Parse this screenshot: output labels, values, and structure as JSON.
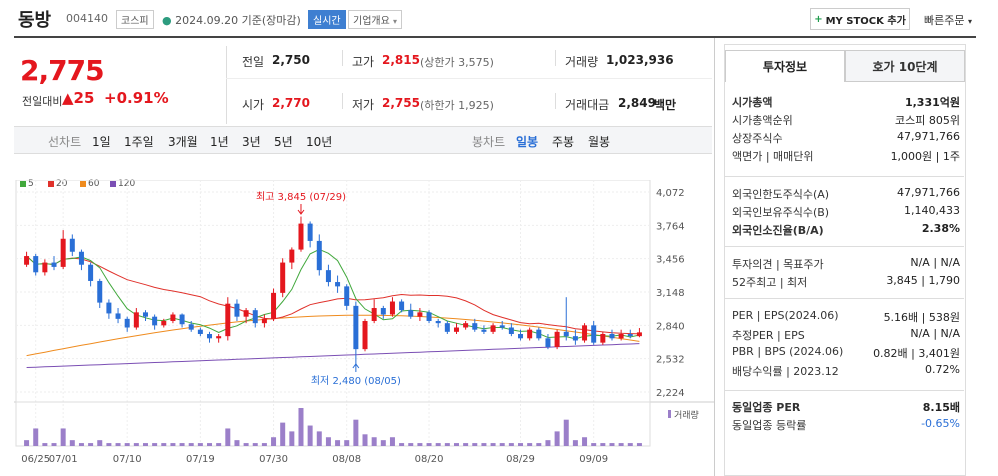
{
  "header": {
    "name": "동방",
    "code": "004140",
    "market_badge": "코스피",
    "date": "2024.09.20",
    "date_suffix": "기준(장마감)",
    "realtime_badge": "실시간",
    "company_info": "기업개요",
    "mystock_label": "MY STOCK 추가",
    "quick_order": "빠른주문"
  },
  "price": {
    "current": "2,775",
    "prev_label": "전일대비",
    "change": "▲25",
    "change_pct": "+0.91%"
  },
  "stats": {
    "prev_close_label": "전일",
    "prev_close": "2,750",
    "high_label": "고가",
    "high": "2,815",
    "upper_limit": "(상한가 3,575)",
    "volume_label": "거래량",
    "volume": "1,023,936",
    "open_label": "시가",
    "open": "2,770",
    "low_label": "저가",
    "low": "2,755",
    "lower_limit": "(하한가 1,925)",
    "amount_label": "거래대금",
    "amount": "2,849",
    "amount_unit": "백만"
  },
  "period": {
    "line_label": "선차트",
    "items": [
      "1일",
      "1주일",
      "3개월",
      "1년",
      "3년",
      "5년",
      "10년"
    ],
    "candle_label": "봉차트",
    "candle_items": [
      "일봉",
      "주봉",
      "월봉"
    ],
    "active_candle": "일봉"
  },
  "chart_data": {
    "type": "candlestick",
    "legend": [
      {
        "name": "5",
        "color": "#41a83c"
      },
      {
        "name": "20",
        "color": "#e0312b"
      },
      {
        "name": "60",
        "color": "#ef8b1e"
      },
      {
        "name": "120",
        "color": "#7b4fb4"
      }
    ],
    "y_ticks": [
      "4,072",
      "3,764",
      "3,456",
      "3,148",
      "2,840",
      "2,532",
      "2,224"
    ],
    "ylim": [
      2224,
      4072
    ],
    "x_ticks": [
      "06/25",
      "07/01",
      "07/10",
      "07/19",
      "07/30",
      "08/08",
      "08/20",
      "08/29",
      "09/09"
    ],
    "high_annotation": "최고 3,845 (07/29)",
    "low_annotation": "최저 2,480 (08/05)",
    "volume_label": "거래량",
    "candles": [
      [
        3400,
        3520,
        3380,
        3480
      ],
      [
        3480,
        3500,
        3300,
        3330
      ],
      [
        3330,
        3450,
        3300,
        3420
      ],
      [
        3420,
        3480,
        3350,
        3380
      ],
      [
        3380,
        3720,
        3360,
        3640
      ],
      [
        3640,
        3680,
        3480,
        3520
      ],
      [
        3520,
        3540,
        3350,
        3400
      ],
      [
        3400,
        3420,
        3200,
        3250
      ],
      [
        3250,
        3270,
        3000,
        3050
      ],
      [
        3050,
        3080,
        2900,
        2950
      ],
      [
        2950,
        3000,
        2860,
        2900
      ],
      [
        2900,
        2920,
        2780,
        2820
      ],
      [
        2820,
        3000,
        2800,
        2960
      ],
      [
        2960,
        2980,
        2880,
        2920
      ],
      [
        2920,
        2940,
        2800,
        2840
      ],
      [
        2840,
        2900,
        2820,
        2880
      ],
      [
        2880,
        2960,
        2860,
        2940
      ],
      [
        2940,
        2950,
        2820,
        2850
      ],
      [
        2850,
        2880,
        2780,
        2800
      ],
      [
        2800,
        2820,
        2740,
        2760
      ],
      [
        2760,
        2780,
        2680,
        2720
      ],
      [
        2720,
        2760,
        2680,
        2740
      ],
      [
        2740,
        3100,
        2700,
        3040
      ],
      [
        3040,
        3080,
        2880,
        2920
      ],
      [
        2920,
        3000,
        2860,
        2980
      ],
      [
        2980,
        3000,
        2820,
        2860
      ],
      [
        2860,
        2940,
        2820,
        2900
      ],
      [
        2900,
        3180,
        2880,
        3140
      ],
      [
        3140,
        3460,
        3100,
        3420
      ],
      [
        3420,
        3560,
        3360,
        3540
      ],
      [
        3540,
        3845,
        3520,
        3780
      ],
      [
        3780,
        3800,
        3560,
        3620
      ],
      [
        3620,
        3680,
        3300,
        3350
      ],
      [
        3350,
        3400,
        3200,
        3240
      ],
      [
        3240,
        3300,
        3140,
        3200
      ],
      [
        3200,
        3220,
        2980,
        3020
      ],
      [
        3020,
        3060,
        2480,
        2620
      ],
      [
        2620,
        2900,
        2600,
        2880
      ],
      [
        2880,
        3080,
        2860,
        3000
      ],
      [
        3000,
        3020,
        2900,
        2940
      ],
      [
        2940,
        3100,
        2920,
        3060
      ],
      [
        3060,
        3080,
        2960,
        2980
      ],
      [
        2980,
        3040,
        2900,
        2920
      ],
      [
        2920,
        3000,
        2880,
        2960
      ],
      [
        2960,
        2980,
        2860,
        2880
      ],
      [
        2880,
        2900,
        2820,
        2860
      ],
      [
        2860,
        2880,
        2760,
        2780
      ],
      [
        2780,
        2860,
        2760,
        2820
      ],
      [
        2820,
        2880,
        2800,
        2860
      ],
      [
        2860,
        2900,
        2780,
        2800
      ],
      [
        2800,
        2840,
        2760,
        2780
      ],
      [
        2780,
        2860,
        2760,
        2840
      ],
      [
        2840,
        2880,
        2800,
        2820
      ],
      [
        2820,
        2860,
        2740,
        2760
      ],
      [
        2760,
        2800,
        2700,
        2720
      ],
      [
        2720,
        2820,
        2700,
        2800
      ],
      [
        2800,
        2820,
        2700,
        2720
      ],
      [
        2720,
        2760,
        2620,
        2640
      ],
      [
        2640,
        2800,
        2620,
        2780
      ],
      [
        2780,
        3100,
        2700,
        2740
      ],
      [
        2740,
        2800,
        2660,
        2700
      ],
      [
        2700,
        2860,
        2680,
        2840
      ],
      [
        2840,
        2880,
        2660,
        2680
      ],
      [
        2680,
        2780,
        2660,
        2760
      ],
      [
        2760,
        2800,
        2700,
        2720
      ],
      [
        2720,
        2800,
        2700,
        2760
      ],
      [
        2760,
        2800,
        2720,
        2740
      ],
      [
        2740,
        2815,
        2730,
        2775
      ]
    ],
    "volumes": [
      2,
      6,
      1,
      1,
      6,
      2,
      1,
      1,
      2,
      1,
      1,
      1,
      1,
      1,
      1,
      1,
      1,
      1,
      1,
      1,
      1,
      1,
      6,
      2,
      1,
      1,
      1,
      3,
      8,
      5,
      13,
      7,
      5,
      3,
      2,
      2,
      9,
      4,
      3,
      2,
      3,
      1,
      1,
      1,
      1,
      1,
      1,
      1,
      1,
      1,
      1,
      1,
      1,
      1,
      1,
      1,
      1,
      2,
      5,
      9,
      2,
      3,
      1,
      1,
      1,
      1,
      1,
      1
    ]
  },
  "right_panel": {
    "tab_active": "투자정보",
    "tab_other": "호가 10단계",
    "rows1": [
      {
        "k": "시가총액",
        "v": "1,331억원",
        "bold": true
      },
      {
        "k": "시가총액순위",
        "v": "코스피 805위"
      },
      {
        "k": "상장주식수",
        "v": "47,971,766"
      },
      {
        "k": "액면가 | 매매단위",
        "v": "1,000원 | 1주"
      }
    ],
    "rows2": [
      {
        "k": "외국인한도주식수(A)",
        "v": "47,971,766"
      },
      {
        "k": "외국인보유주식수(B)",
        "v": "1,140,433"
      },
      {
        "k": "외국인소진율(B/A)",
        "v": "2.38%",
        "bold": true
      }
    ],
    "rows3": [
      {
        "k": "투자의견 | 목표주가",
        "v": "N/A | N/A"
      },
      {
        "k": "52주최고 | 최저",
        "v": "3,845 | 1,790"
      }
    ],
    "rows4": [
      {
        "k": "PER | EPS(2024.06)",
        "v": "5.16배 | 538원"
      },
      {
        "k": "추정PER | EPS",
        "v": "N/A | N/A"
      },
      {
        "k": "PBR | BPS (2024.06)",
        "v": "0.82배 | 3,401원"
      },
      {
        "k": "배당수익률 | 2023.12",
        "v": "0.72%"
      }
    ],
    "rows5": [
      {
        "k": "동일업종 PER",
        "v": "8.15배",
        "bold": true
      },
      {
        "k": "동일업종 등락률",
        "v": "-0.65%",
        "blue": true
      }
    ]
  }
}
